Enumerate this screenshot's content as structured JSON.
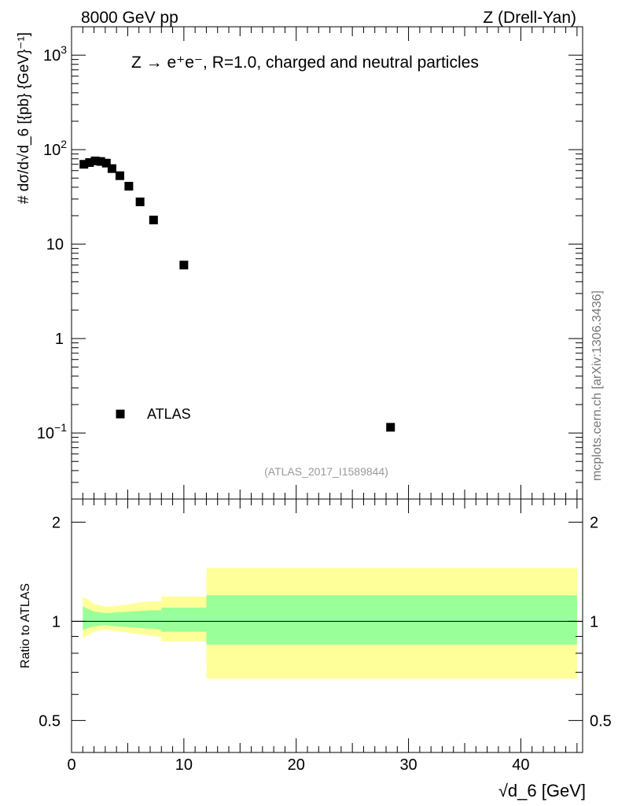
{
  "header": {
    "left": "8000 GeV pp",
    "right": "Z (Drell-Yan)"
  },
  "side_label": "mcplots.cern.ch [arXiv:1306.3436]",
  "chart_data": [
    {
      "type": "scatter",
      "panel": "main",
      "title": "Z → e⁺e⁻, R=1.0, charged and neutral particles",
      "subtitle": "(ATLAS_2017_I1589844)",
      "ylabel": "# dσ/d√d_6 [{pb} {GeV}⁻¹]",
      "yscale": "log",
      "ylim": [
        0.02,
        2000
      ],
      "xlim": [
        0,
        45.5
      ],
      "yticks": [
        {
          "v": 0.1,
          "base": "10",
          "exp": "−1"
        },
        {
          "v": 1,
          "base": "1",
          "exp": ""
        },
        {
          "v": 10,
          "base": "10",
          "exp": ""
        },
        {
          "v": 100,
          "base": "10",
          "exp": "2"
        },
        {
          "v": 1000,
          "base": "10",
          "exp": "3"
        }
      ],
      "legend": "left",
      "series": [
        {
          "name": "ATLAS",
          "color": "#000000",
          "marker": "square",
          "x": [
            1.1,
            1.6,
            2.1,
            2.6,
            3.1,
            3.6,
            4.3,
            5.1,
            6.1,
            7.3,
            10.0,
            28.4
          ],
          "y": [
            70,
            73,
            76,
            75,
            72,
            63,
            53,
            41,
            28,
            18,
            6,
            0.115
          ]
        }
      ]
    },
    {
      "type": "area",
      "panel": "ratio",
      "ylabel": "Ratio to ATLAS",
      "xlabel": "√d_6 [GeV]",
      "xlim": [
        0,
        45.5
      ],
      "ylim": [
        0.4,
        2.35
      ],
      "xticks": [
        0,
        10,
        20,
        30,
        40
      ],
      "yticks": [
        0.5,
        1,
        2
      ],
      "reference_line": 1.0,
      "bands": [
        {
          "color": "#ffff99",
          "x": [
            1.0,
            1.5,
            2.0,
            2.5,
            3.0,
            3.5,
            4.0,
            5.0,
            6.0,
            7.0,
            8.0,
            8.01,
            12.0,
            12.01,
            45.0
          ],
          "lo": [
            0.89,
            0.91,
            0.93,
            0.94,
            0.945,
            0.94,
            0.935,
            0.925,
            0.915,
            0.905,
            0.895,
            0.87,
            0.87,
            0.67,
            0.67
          ],
          "hi": [
            1.19,
            1.16,
            1.13,
            1.12,
            1.11,
            1.11,
            1.115,
            1.125,
            1.14,
            1.15,
            1.15,
            1.19,
            1.19,
            1.45,
            1.45
          ]
        },
        {
          "color": "#99ff99",
          "x": [
            1.0,
            1.5,
            2.0,
            2.5,
            3.0,
            3.5,
            4.0,
            5.0,
            6.0,
            7.0,
            8.0,
            8.01,
            12.0,
            12.01,
            45.0
          ],
          "lo": [
            0.94,
            0.955,
            0.965,
            0.97,
            0.975,
            0.97,
            0.965,
            0.96,
            0.955,
            0.95,
            0.945,
            0.93,
            0.93,
            0.85,
            0.85
          ],
          "hi": [
            1.11,
            1.09,
            1.07,
            1.065,
            1.06,
            1.06,
            1.065,
            1.07,
            1.075,
            1.08,
            1.08,
            1.1,
            1.1,
            1.2,
            1.2
          ]
        }
      ]
    }
  ]
}
